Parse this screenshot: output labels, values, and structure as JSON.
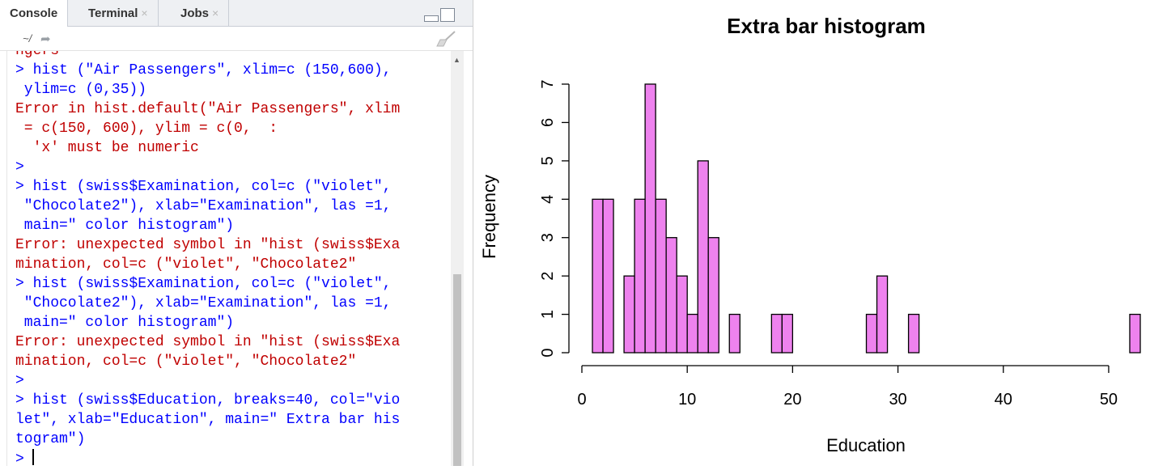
{
  "console_tabs": [
    {
      "label": "Console",
      "closable": false,
      "active": true
    },
    {
      "label": "Terminal",
      "closable": true,
      "active": false
    },
    {
      "label": "Jobs",
      "closable": true,
      "active": false
    }
  ],
  "close_glyph": "×",
  "path": "~/",
  "console_lines": [
    {
      "text": "ngers",
      "kind": "err"
    },
    {
      "text": "> hist (\"Air Passengers\", xlim=c (150,600),",
      "kind": "in"
    },
    {
      "text": " ylim=c (0,35))",
      "kind": "in"
    },
    {
      "text": "Error in hist.default(\"Air Passengers\", xlim",
      "kind": "err"
    },
    {
      "text": " = c(150, 600), ylim = c(0,  :",
      "kind": "err"
    },
    {
      "text": "  'x' must be numeric",
      "kind": "err"
    },
    {
      "text": ">",
      "kind": "in"
    },
    {
      "text": "> hist (swiss$Examination, col=c (\"violet\",",
      "kind": "in"
    },
    {
      "text": " \"Chocolate2\"), xlab=\"Examination\", las =1,",
      "kind": "in"
    },
    {
      "text": " main=\" color histogram\")",
      "kind": "in"
    },
    {
      "text": "Error: unexpected symbol in \"hist (swiss$Exa",
      "kind": "err"
    },
    {
      "text": "mination, col=c (\"violet\", \"Chocolate2\"",
      "kind": "err"
    },
    {
      "text": "> hist (swiss$Examination, col=c (\"violet\",",
      "kind": "in"
    },
    {
      "text": " \"Chocolate2\"), xlab=\"Examination\", las =1,",
      "kind": "in"
    },
    {
      "text": " main=\" color histogram\")",
      "kind": "in"
    },
    {
      "text": "Error: unexpected symbol in \"hist (swiss$Exa",
      "kind": "err"
    },
    {
      "text": "mination, col=c (\"violet\", \"Chocolate2\"",
      "kind": "err"
    },
    {
      "text": ">",
      "kind": "in"
    },
    {
      "text": "> hist (swiss$Education, breaks=40, col=\"vio",
      "kind": "in"
    },
    {
      "text": "let\", xlab=\"Education\", main=\" Extra bar his",
      "kind": "in"
    },
    {
      "text": "togram\")",
      "kind": "in"
    },
    {
      "text": ">",
      "kind": "in",
      "cursor": true
    }
  ],
  "colors": {
    "input": "#0000ff",
    "error": "#c00000",
    "bar_fill": "#ee82ee",
    "bar_stroke": "#000000"
  },
  "chart_data": {
    "type": "bar",
    "title": "Extra bar histogram",
    "xlabel": "Education",
    "ylabel": "Frequency",
    "bin_width": 1,
    "bins": [
      {
        "x0": 1,
        "x1": 2,
        "count": 4
      },
      {
        "x0": 2,
        "x1": 3,
        "count": 4
      },
      {
        "x0": 3,
        "x1": 4,
        "count": 0
      },
      {
        "x0": 4,
        "x1": 5,
        "count": 2
      },
      {
        "x0": 5,
        "x1": 6,
        "count": 4
      },
      {
        "x0": 6,
        "x1": 7,
        "count": 7
      },
      {
        "x0": 7,
        "x1": 8,
        "count": 4
      },
      {
        "x0": 8,
        "x1": 9,
        "count": 3
      },
      {
        "x0": 9,
        "x1": 10,
        "count": 2
      },
      {
        "x0": 10,
        "x1": 11,
        "count": 1
      },
      {
        "x0": 11,
        "x1": 12,
        "count": 5
      },
      {
        "x0": 12,
        "x1": 13,
        "count": 3
      },
      {
        "x0": 14,
        "x1": 15,
        "count": 1
      },
      {
        "x0": 18,
        "x1": 19,
        "count": 1
      },
      {
        "x0": 19,
        "x1": 20,
        "count": 1
      },
      {
        "x0": 27,
        "x1": 28,
        "count": 1
      },
      {
        "x0": 28,
        "x1": 29,
        "count": 2
      },
      {
        "x0": 31,
        "x1": 32,
        "count": 1
      },
      {
        "x0": 52,
        "x1": 53,
        "count": 1
      }
    ],
    "xticks": [
      0,
      10,
      20,
      30,
      40,
      50
    ],
    "yticks": [
      0,
      1,
      2,
      3,
      4,
      5,
      6,
      7
    ],
    "xlim": [
      0,
      53
    ],
    "ylim": [
      0,
      7
    ],
    "grid": false,
    "legend": "none"
  }
}
